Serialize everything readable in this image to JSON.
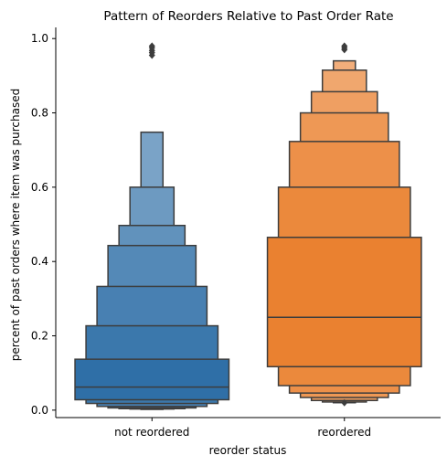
{
  "chart_data": {
    "type": "boxen",
    "title": "Pattern of Reorders Relative to Past Order Rate",
    "xlabel": "reorder status",
    "ylabel": "percent of past orders where item was purchased",
    "categories": [
      "not reordered",
      "reordered"
    ],
    "ylim": [
      -0.02,
      1.03
    ],
    "yticks": [
      0.0,
      0.2,
      0.4,
      0.6,
      0.8,
      1.0
    ],
    "ytick_labels": [
      "0.0",
      "0.2",
      "0.4",
      "0.6",
      "0.8",
      "1.0"
    ],
    "grid": false,
    "series": [
      {
        "category": "not reordered",
        "color": "#2f6fa7",
        "median": 0.062,
        "letter_values": [
          {
            "low": 0.028,
            "high": 0.137
          },
          {
            "low": 0.018,
            "high": 0.227
          },
          {
            "low": 0.01,
            "high": 0.333
          },
          {
            "low": 0.006,
            "high": 0.443
          },
          {
            "low": 0.004,
            "high": 0.497
          },
          {
            "low": 0.003,
            "high": 0.6
          },
          {
            "low": 0.002,
            "high": 0.748
          }
        ],
        "outliers": [
          0.955,
          0.962,
          0.968,
          0.975,
          0.98
        ]
      },
      {
        "category": "reordered",
        "color": "#ea8130",
        "median": 0.25,
        "letter_values": [
          {
            "low": 0.117,
            "high": 0.465
          },
          {
            "low": 0.066,
            "high": 0.6
          },
          {
            "low": 0.046,
            "high": 0.723
          },
          {
            "low": 0.034,
            "high": 0.8
          },
          {
            "low": 0.026,
            "high": 0.857
          },
          {
            "low": 0.022,
            "high": 0.915
          },
          {
            "low": 0.02,
            "high": 0.94
          }
        ],
        "outliers": [
          0.02,
          0.97,
          0.975,
          0.98
        ]
      }
    ]
  }
}
